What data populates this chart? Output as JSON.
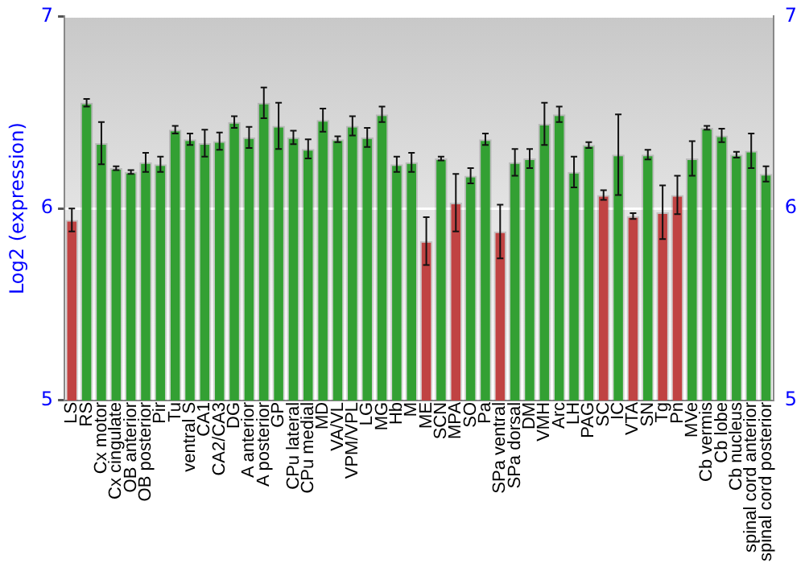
{
  "chart_data": {
    "type": "bar",
    "ylabel": "Log2 (expression)",
    "categories": [
      "LS",
      "RS",
      "Cx motor",
      "Cx cingulate",
      "OB anterior",
      "OB posterior",
      "Pir",
      "Tu",
      "ventral S",
      "CA1",
      "CA2/CA3",
      "DG",
      "A anterior",
      "A posterior",
      "GP",
      "CPu lateral",
      "CPu medial",
      "MD",
      "VA/VL",
      "VPM/VPL",
      "LG",
      "MG",
      "Hb",
      "M",
      "ME",
      "SCN",
      "MPA",
      "SO",
      "Pa",
      "SPa ventral",
      "SPa dorsal",
      "DM",
      "VMH",
      "Arc",
      "LH",
      "PAG",
      "SC",
      "IC",
      "VTA",
      "SN",
      "Tg",
      "Pn",
      "MVe",
      "Cb vermis",
      "Cb lobe",
      "Cb nucleus",
      "spinal cord anterior",
      "spinal cord posterior"
    ],
    "values": [
      5.94,
      6.55,
      6.34,
      6.21,
      6.19,
      6.24,
      6.23,
      6.41,
      6.36,
      6.34,
      6.35,
      6.45,
      6.37,
      6.55,
      6.43,
      6.37,
      6.31,
      6.46,
      6.36,
      6.43,
      6.37,
      6.49,
      6.23,
      6.24,
      5.83,
      6.26,
      6.03,
      6.17,
      6.36,
      5.88,
      6.24,
      6.26,
      6.44,
      6.49,
      6.19,
      6.33,
      6.07,
      6.28,
      5.96,
      6.28,
      5.98,
      6.07,
      6.26,
      6.42,
      6.38,
      6.28,
      6.3,
      6.18
    ],
    "errors": [
      0.06,
      0.02,
      0.11,
      0.01,
      0.01,
      0.05,
      0.04,
      0.02,
      0.03,
      0.07,
      0.045,
      0.03,
      0.055,
      0.08,
      0.12,
      0.035,
      0.05,
      0.06,
      0.015,
      0.05,
      0.05,
      0.04,
      0.04,
      0.05,
      0.125,
      0.01,
      0.15,
      0.04,
      0.03,
      0.14,
      0.07,
      0.05,
      0.11,
      0.04,
      0.08,
      0.015,
      0.025,
      0.21,
      0.015,
      0.025,
      0.14,
      0.1,
      0.09,
      0.01,
      0.035,
      0.015,
      0.09,
      0.04
    ],
    "colors": [
      "#c04343",
      "#33a033",
      "#33a033",
      "#33a033",
      "#33a033",
      "#33a033",
      "#33a033",
      "#33a033",
      "#33a033",
      "#33a033",
      "#33a033",
      "#33a033",
      "#33a033",
      "#33a033",
      "#33a033",
      "#33a033",
      "#33a033",
      "#33a033",
      "#33a033",
      "#33a033",
      "#33a033",
      "#33a033",
      "#33a033",
      "#33a033",
      "#c04343",
      "#33a033",
      "#c04343",
      "#33a033",
      "#33a033",
      "#c04343",
      "#33a033",
      "#33a033",
      "#33a033",
      "#33a033",
      "#33a033",
      "#33a033",
      "#c04343",
      "#33a033",
      "#c04343",
      "#33a033",
      "#c04343",
      "#c04343",
      "#33a033",
      "#33a033",
      "#33a033",
      "#33a033",
      "#33a033",
      "#33a033"
    ],
    "ylim": [
      5,
      7
    ],
    "yticks": [
      5,
      6,
      7
    ],
    "y2lim": [
      5,
      7
    ],
    "y2ticks": [
      5,
      6,
      7
    ],
    "grid": "y",
    "legend": false
  }
}
